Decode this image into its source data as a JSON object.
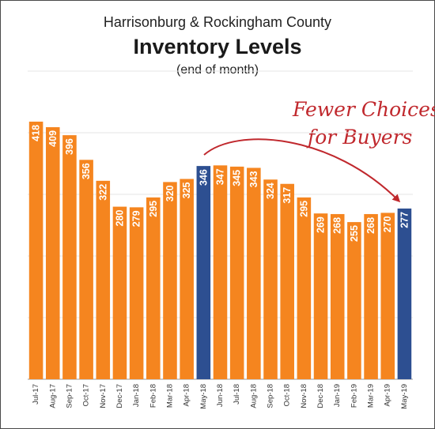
{
  "chart_data": {
    "type": "bar",
    "title": "Harrisonburg & Rockingham County",
    "heading": "Inventory Levels",
    "subtitle": "(end of month)",
    "annotation": [
      "Fewer Choices",
      "for Buyers"
    ],
    "categories": [
      "Jul-17",
      "Aug-17",
      "Sep-17",
      "Oct-17",
      "Nov-17",
      "Dec-17",
      "Jan-18",
      "Feb-18",
      "Mar-18",
      "Apr-18",
      "May-18",
      "Jun-18",
      "Jul-18",
      "Aug-18",
      "Sep-18",
      "Oct-18",
      "Nov-18",
      "Dec-18",
      "Jan-19",
      "Feb-19",
      "Mar-19",
      "Apr-19",
      "May-19"
    ],
    "values": [
      418,
      409,
      396,
      356,
      322,
      280,
      279,
      295,
      320,
      325,
      346,
      347,
      345,
      343,
      324,
      317,
      295,
      269,
      268,
      255,
      268,
      270,
      277
    ],
    "highlighted": [
      "May-18",
      "May-19"
    ],
    "ylim": [
      0,
      500
    ],
    "grid": true,
    "colors": {
      "bar": "#f5851f",
      "highlight": "#2d4f91",
      "annotation": "#c0282d",
      "grid": "#e6e6e6"
    }
  }
}
